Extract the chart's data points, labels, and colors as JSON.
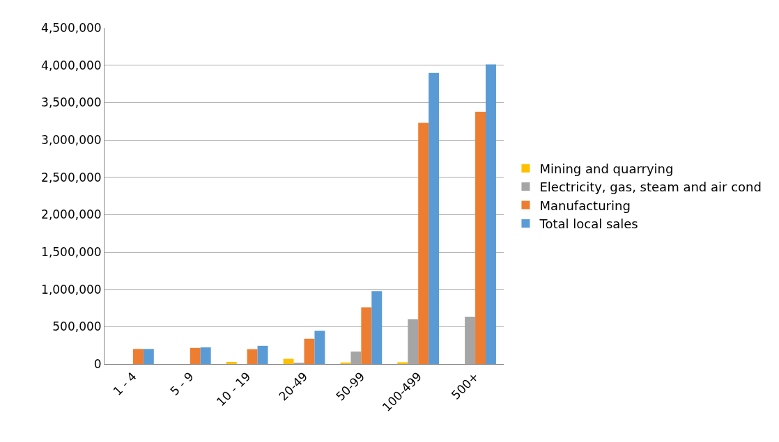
{
  "chart_data": {
    "type": "bar",
    "categories": [
      "1 - 4",
      "5 - 9",
      "10 - 19",
      "20-49",
      "50-99",
      "100-499",
      "500+"
    ],
    "series": [
      {
        "name": "Mining and quarrying",
        "color": "#ffc000",
        "values": [
          0,
          0,
          28000,
          70000,
          21000,
          24000,
          0
        ]
      },
      {
        "name": "Electricity, gas, steam and air cond",
        "color": "#a5a5a5",
        "values": [
          0,
          0,
          0,
          14000,
          167000,
          600000,
          634000
        ]
      },
      {
        "name": "Manufacturing",
        "color": "#ed7d31",
        "values": [
          202000,
          216000,
          199000,
          338000,
          760000,
          3228000,
          3375000
        ]
      },
      {
        "name": "Total local sales",
        "color": "#5b9bd5",
        "values": [
          202000,
          223000,
          244000,
          446000,
          976000,
          3897000,
          4010000
        ]
      }
    ],
    "ylim": [
      0,
      4500000
    ],
    "yticks": [
      {
        "value": 0,
        "label": "0"
      },
      {
        "value": 500000,
        "label": "500,000"
      },
      {
        "value": 1000000,
        "label": "1,000,000"
      },
      {
        "value": 1500000,
        "label": "1,500,000"
      },
      {
        "value": 2000000,
        "label": "2,000,000"
      },
      {
        "value": 2500000,
        "label": "2,500,000"
      },
      {
        "value": 3000000,
        "label": "3,000,000"
      },
      {
        "value": 3500000,
        "label": "3,500,000"
      },
      {
        "value": 4000000,
        "label": "4,000,000"
      },
      {
        "value": 4500000,
        "label": "4,500,000"
      }
    ],
    "grid": "y",
    "legend": "right"
  }
}
